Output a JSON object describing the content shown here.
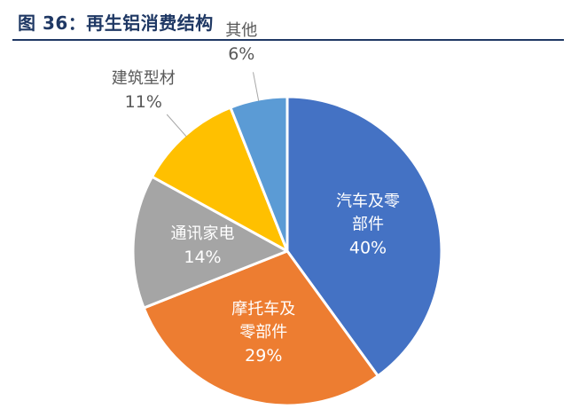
{
  "figure": {
    "title": "图 36：再生铝消费结构"
  },
  "chart_data": {
    "type": "pie",
    "title": "",
    "slices": [
      {
        "name": "汽车及零部件",
        "label_lines": [
          "汽车及零",
          "部件"
        ],
        "value": 40,
        "value_label": "40%",
        "color": "#4472c4",
        "label_color": "#ffffff"
      },
      {
        "name": "摩托车及零部件",
        "label_lines": [
          "摩托车及",
          "零部件"
        ],
        "value": 29,
        "value_label": "29%",
        "color": "#ed7d31",
        "label_color": "#ffffff"
      },
      {
        "name": "通讯家电",
        "label_lines": [
          "通讯家电"
        ],
        "value": 14,
        "value_label": "14%",
        "color": "#a5a5a5",
        "label_color": "#ffffff"
      },
      {
        "name": "建筑型材",
        "label_lines": [
          "建筑型材"
        ],
        "value": 11,
        "value_label": "11%",
        "color": "#ffc000",
        "label_color": "#595959"
      },
      {
        "name": "其他",
        "label_lines": [
          "其他"
        ],
        "value": 6,
        "value_label": "6%",
        "color": "#5b9bd5",
        "label_color": "#595959"
      }
    ]
  }
}
